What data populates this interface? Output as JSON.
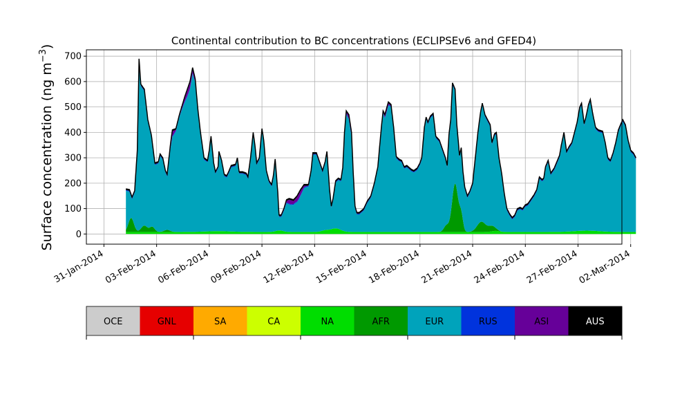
{
  "chart_data": {
    "type": "area",
    "stacked": true,
    "title": "Continental contribution to BC concentrations (ECLIPSEv6 and GFED4)",
    "xlabel": "",
    "ylabel": "Surface concentration (ng m⁻³)",
    "ylabel_main": "Surface concentration (ng m",
    "ylabel_sup": "−3",
    "ylabel_close": ")",
    "xlim": [
      -1.0,
      29.5
    ],
    "ylim": [
      -40,
      725
    ],
    "x_unit": "days since 31-Jan-2014",
    "grid": true,
    "x_ticks": [
      {
        "label": "31-Jan-2014",
        "value": 0
      },
      {
        "label": "03-Feb-2014",
        "value": 3
      },
      {
        "label": "06-Feb-2014",
        "value": 6
      },
      {
        "label": "09-Feb-2014",
        "value": 9
      },
      {
        "label": "12-Feb-2014",
        "value": 12
      },
      {
        "label": "15-Feb-2014",
        "value": 15
      },
      {
        "label": "18-Feb-2014",
        "value": 18
      },
      {
        "label": "21-Feb-2014",
        "value": 21
      },
      {
        "label": "24-Feb-2014",
        "value": 24
      },
      {
        "label": "27-Feb-2014",
        "value": 27
      },
      {
        "label": "02-Mar-2014",
        "value": 30
      }
    ],
    "y_ticks": [
      {
        "label": "0",
        "value": 0
      },
      {
        "label": "100",
        "value": 100
      },
      {
        "label": "200",
        "value": 200
      },
      {
        "label": "300",
        "value": 300
      },
      {
        "label": "400",
        "value": 400
      },
      {
        "label": "500",
        "value": 500
      },
      {
        "label": "600",
        "value": 600
      },
      {
        "label": "700",
        "value": 700
      }
    ],
    "total_points": [
      [
        1.25,
        178
      ],
      [
        1.45,
        175
      ],
      [
        1.6,
        145
      ],
      [
        1.75,
        170
      ],
      [
        1.9,
        330
      ],
      [
        2.0,
        690
      ],
      [
        2.1,
        590
      ],
      [
        2.3,
        570
      ],
      [
        2.5,
        450
      ],
      [
        2.7,
        390
      ],
      [
        2.9,
        280
      ],
      [
        3.1,
        285
      ],
      [
        3.2,
        315
      ],
      [
        3.35,
        300
      ],
      [
        3.5,
        250
      ],
      [
        3.6,
        235
      ],
      [
        3.8,
        360
      ],
      [
        3.9,
        410
      ],
      [
        4.1,
        415
      ],
      [
        4.3,
        470
      ],
      [
        4.6,
        540
      ],
      [
        4.9,
        600
      ],
      [
        5.05,
        655
      ],
      [
        5.2,
        610
      ],
      [
        5.35,
        490
      ],
      [
        5.5,
        400
      ],
      [
        5.7,
        300
      ],
      [
        5.9,
        290
      ],
      [
        6.0,
        330
      ],
      [
        6.1,
        385
      ],
      [
        6.25,
        280
      ],
      [
        6.35,
        245
      ],
      [
        6.5,
        265
      ],
      [
        6.55,
        325
      ],
      [
        6.7,
        290
      ],
      [
        6.85,
        235
      ],
      [
        7.0,
        230
      ],
      [
        7.1,
        245
      ],
      [
        7.25,
        270
      ],
      [
        7.5,
        275
      ],
      [
        7.6,
        300
      ],
      [
        7.7,
        245
      ],
      [
        7.9,
        245
      ],
      [
        8.1,
        240
      ],
      [
        8.2,
        225
      ],
      [
        8.35,
        300
      ],
      [
        8.5,
        400
      ],
      [
        8.6,
        350
      ],
      [
        8.7,
        280
      ],
      [
        8.85,
        300
      ],
      [
        9.0,
        415
      ],
      [
        9.1,
        370
      ],
      [
        9.25,
        250
      ],
      [
        9.4,
        210
      ],
      [
        9.55,
        195
      ],
      [
        9.65,
        230
      ],
      [
        9.75,
        295
      ],
      [
        9.8,
        255
      ],
      [
        9.9,
        165
      ],
      [
        9.97,
        75
      ],
      [
        10.1,
        75
      ],
      [
        10.25,
        100
      ],
      [
        10.4,
        135
      ],
      [
        10.55,
        140
      ],
      [
        10.8,
        135
      ],
      [
        11.0,
        150
      ],
      [
        11.2,
        175
      ],
      [
        11.4,
        195
      ],
      [
        11.65,
        195
      ],
      [
        11.8,
        250
      ],
      [
        11.9,
        320
      ],
      [
        12.1,
        320
      ],
      [
        12.3,
        280
      ],
      [
        12.45,
        250
      ],
      [
        12.6,
        285
      ],
      [
        12.7,
        325
      ],
      [
        12.85,
        175
      ],
      [
        12.95,
        110
      ],
      [
        13.05,
        140
      ],
      [
        13.2,
        210
      ],
      [
        13.35,
        220
      ],
      [
        13.5,
        215
      ],
      [
        13.6,
        260
      ],
      [
        13.7,
        400
      ],
      [
        13.8,
        485
      ],
      [
        13.95,
        470
      ],
      [
        14.1,
        400
      ],
      [
        14.2,
        240
      ],
      [
        14.3,
        110
      ],
      [
        14.4,
        85
      ],
      [
        14.55,
        85
      ],
      [
        14.8,
        100
      ],
      [
        15.0,
        130
      ],
      [
        15.2,
        150
      ],
      [
        15.4,
        200
      ],
      [
        15.6,
        265
      ],
      [
        15.8,
        420
      ],
      [
        15.9,
        485
      ],
      [
        16.0,
        470
      ],
      [
        16.2,
        520
      ],
      [
        16.35,
        510
      ],
      [
        16.5,
        420
      ],
      [
        16.65,
        305
      ],
      [
        16.8,
        295
      ],
      [
        16.95,
        290
      ],
      [
        17.1,
        265
      ],
      [
        17.25,
        270
      ],
      [
        17.5,
        255
      ],
      [
        17.65,
        250
      ],
      [
        17.85,
        260
      ],
      [
        18.0,
        280
      ],
      [
        18.1,
        300
      ],
      [
        18.25,
        420
      ],
      [
        18.35,
        460
      ],
      [
        18.45,
        440
      ],
      [
        18.6,
        465
      ],
      [
        18.75,
        475
      ],
      [
        18.9,
        385
      ],
      [
        19.1,
        370
      ],
      [
        19.3,
        330
      ],
      [
        19.45,
        300
      ],
      [
        19.55,
        270
      ],
      [
        19.65,
        390
      ],
      [
        19.75,
        450
      ],
      [
        19.85,
        595
      ],
      [
        20.0,
        570
      ],
      [
        20.1,
        430
      ],
      [
        20.25,
        310
      ],
      [
        20.35,
        340
      ],
      [
        20.45,
        245
      ],
      [
        20.55,
        185
      ],
      [
        20.7,
        150
      ],
      [
        20.85,
        170
      ],
      [
        21.0,
        200
      ],
      [
        21.15,
        300
      ],
      [
        21.3,
        400
      ],
      [
        21.45,
        480
      ],
      [
        21.55,
        515
      ],
      [
        21.7,
        470
      ],
      [
        21.85,
        450
      ],
      [
        22.0,
        430
      ],
      [
        22.1,
        360
      ],
      [
        22.25,
        395
      ],
      [
        22.35,
        400
      ],
      [
        22.5,
        300
      ],
      [
        22.65,
        240
      ],
      [
        22.8,
        160
      ],
      [
        22.95,
        100
      ],
      [
        23.1,
        80
      ],
      [
        23.25,
        65
      ],
      [
        23.4,
        75
      ],
      [
        23.55,
        100
      ],
      [
        23.7,
        105
      ],
      [
        23.85,
        100
      ],
      [
        24.0,
        115
      ],
      [
        24.15,
        120
      ],
      [
        24.3,
        135
      ],
      [
        24.5,
        155
      ],
      [
        24.65,
        175
      ],
      [
        24.8,
        225
      ],
      [
        24.95,
        215
      ],
      [
        25.05,
        220
      ],
      [
        25.15,
        265
      ],
      [
        25.3,
        290
      ],
      [
        25.45,
        240
      ],
      [
        25.65,
        260
      ],
      [
        25.8,
        285
      ],
      [
        25.95,
        310
      ],
      [
        26.05,
        350
      ],
      [
        26.2,
        400
      ],
      [
        26.35,
        325
      ],
      [
        26.5,
        345
      ],
      [
        26.65,
        360
      ],
      [
        26.8,
        400
      ],
      [
        26.95,
        440
      ],
      [
        27.1,
        500
      ],
      [
        27.2,
        515
      ],
      [
        27.35,
        435
      ],
      [
        27.45,
        460
      ],
      [
        27.6,
        510
      ],
      [
        27.7,
        530
      ],
      [
        27.85,
        470
      ],
      [
        28.0,
        420
      ],
      [
        28.15,
        410
      ],
      [
        28.4,
        405
      ],
      [
        28.55,
        360
      ],
      [
        28.7,
        300
      ],
      [
        28.85,
        290
      ],
      [
        29.0,
        320
      ],
      [
        29.15,
        360
      ],
      [
        29.3,
        410
      ],
      [
        29.45,
        435
      ],
      [
        29.55,
        450
      ],
      [
        29.7,
        430
      ],
      [
        29.85,
        370
      ],
      [
        30.0,
        330
      ],
      [
        30.15,
        320
      ],
      [
        30.3,
        300
      ]
    ],
    "legend": [
      {
        "code": "OCE",
        "color": "#cccccc",
        "text_color": "#000000"
      },
      {
        "code": "GNL",
        "color": "#e60000",
        "text_color": "#000000"
      },
      {
        "code": "SA",
        "color": "#ffaa00",
        "text_color": "#000000"
      },
      {
        "code": "CA",
        "color": "#ccff00",
        "text_color": "#000000"
      },
      {
        "code": "NA",
        "color": "#00dd00",
        "text_color": "#000000"
      },
      {
        "code": "AFR",
        "color": "#009900",
        "text_color": "#000000"
      },
      {
        "code": "EUR",
        "color": "#00a3bb",
        "text_color": "#000000"
      },
      {
        "code": "RUS",
        "color": "#0033dd",
        "text_color": "#000000"
      },
      {
        "code": "ASI",
        "color": "#660099",
        "text_color": "#000000"
      },
      {
        "code": "AUS",
        "color": "#000000",
        "text_color": "#ffffff"
      }
    ]
  }
}
